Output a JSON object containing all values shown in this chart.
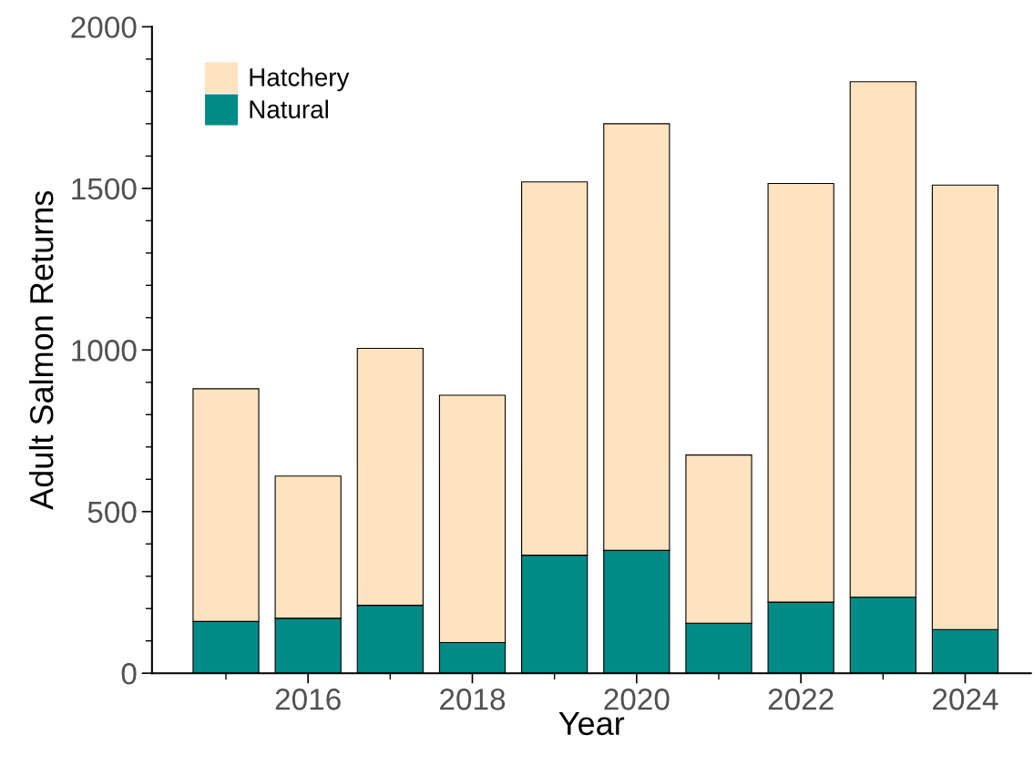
{
  "chart_data": {
    "type": "bar",
    "stacked": true,
    "xlabel": "Year",
    "ylabel": "Adult Salmon Returns",
    "x": [
      2015,
      2016,
      2017,
      2018,
      2019,
      2020,
      2021,
      2022,
      2023,
      2024
    ],
    "series": [
      {
        "name": "Natural",
        "color": "#008b87",
        "values": [
          160,
          170,
          210,
          95,
          365,
          380,
          155,
          220,
          235,
          135
        ]
      },
      {
        "name": "Hatchery",
        "color": "#fde3c0",
        "values": [
          720,
          440,
          795,
          765,
          1155,
          1320,
          520,
          1295,
          1595,
          1375
        ]
      }
    ],
    "xlim": [
      2014.1,
      2024.8
    ],
    "xticks": [
      {
        "value": 2015,
        "label": null
      },
      2016,
      {
        "value": 2017,
        "label": null
      },
      2018,
      {
        "value": 2019,
        "label": null
      },
      2020,
      {
        "value": 2021,
        "label": null
      },
      2022,
      {
        "value": 2023,
        "label": null
      },
      2024
    ],
    "ylim": [
      0,
      2000
    ],
    "yticks": [
      0,
      {
        "value": 100,
        "label": null
      },
      {
        "value": 200,
        "label": null
      },
      {
        "value": 300,
        "label": null
      },
      {
        "value": 400,
        "label": null
      },
      500,
      {
        "value": 600,
        "label": null
      },
      {
        "value": 700,
        "label": null
      },
      {
        "value": 800,
        "label": null
      },
      {
        "value": 900,
        "label": null
      },
      1000,
      {
        "value": 1100,
        "label": null
      },
      {
        "value": 1200,
        "label": null
      },
      {
        "value": 1300,
        "label": null
      },
      {
        "value": 1400,
        "label": null
      },
      1500,
      {
        "value": 1600,
        "label": null
      },
      {
        "value": 1700,
        "label": null
      },
      {
        "value": 1800,
        "label": null
      },
      {
        "value": 1900,
        "label": null
      },
      2000
    ],
    "legend": "top left",
    "grid": false
  }
}
